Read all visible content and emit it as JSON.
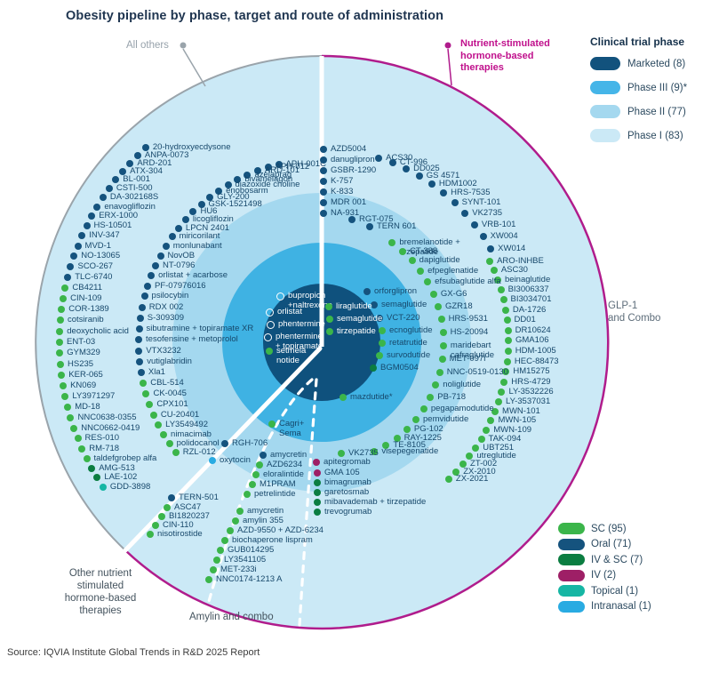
{
  "title": "Obesity pipeline by phase, target and route of administration",
  "source": "Source: IQVIA Institute Global Trends in R&D 2025  Report",
  "labels": {
    "all_others": "All others",
    "nutrient": "Nutrient-stimulated\nhormone-based\ntherapies",
    "glp1": "GLP-1\nand Combo",
    "other_nutrient": "Other nutrient\nstimulated\nhormone-based\ntherapies",
    "amylin": "Amylin and combo"
  },
  "phase_legend": {
    "title": "Clinical trial phase",
    "items": [
      {
        "label": "Marketed (8)",
        "color": "#12527d"
      },
      {
        "label": "Phase III (9)*",
        "color": "#45b5e8"
      },
      {
        "label": "Phase II (77)",
        "color": "#a4d8ef"
      },
      {
        "label": "Phase I (83)",
        "color": "#cbe9f6"
      }
    ]
  },
  "route_legend": {
    "items": [
      {
        "label": "SC (95)",
        "color": "#3bb54a"
      },
      {
        "label": "Oral (71)",
        "color": "#15537e"
      },
      {
        "label": "IV & SC (7)",
        "color": "#0b7d41"
      },
      {
        "label": "IV (2)",
        "color": "#9e1f66"
      },
      {
        "label": "Topical (1)",
        "color": "#16b6a4"
      },
      {
        "label": "Intranasal (1)",
        "color": "#29abe2"
      }
    ]
  },
  "colors": {
    "rings": {
      "phase1": "#cbe9f6",
      "phase2": "#a4d8ef",
      "phase3": "#3fb2e3",
      "marketed": "#0f517d"
    },
    "routes": {
      "sc": "#3bb54a",
      "oral": "#15537e",
      "iv_sc": "#0b7d41",
      "iv": "#9e1f66",
      "topical": "#16b6a4",
      "intranasal": "#29abe2",
      "oral_mkt": "transparent"
    },
    "edge_gray": "#9aa4ab",
    "edge_magenta": "#b01c8c"
  },
  "chart_data": {
    "type": "radial-pipeline",
    "center": [
      362,
      385
    ],
    "ring_radii": {
      "phase1": 322,
      "phase2": 168,
      "phase3": 112,
      "marketed": 66
    },
    "arc_groups": [
      {
        "name": "all-others-phase1",
        "r": 295,
        "a0": -42.2,
        "step": -2.39,
        "items": [
          [
            "20-hydroxyecdysone",
            "oral"
          ],
          [
            "ANPA-0073",
            "oral"
          ],
          [
            "ARD-201",
            "oral"
          ],
          [
            "ATX-304",
            "oral"
          ],
          [
            "BL-001",
            "oral"
          ],
          [
            "CSTI-500",
            "oral"
          ],
          [
            "DA-302168S",
            "oral"
          ],
          [
            "enavogliflozin",
            "oral"
          ],
          [
            "ERX-1000",
            "oral"
          ],
          [
            "HS-10501",
            "oral"
          ],
          [
            "INV-347",
            "oral"
          ],
          [
            "MVD-1",
            "oral"
          ],
          [
            "NO-13065",
            "oral"
          ],
          [
            "SCO-267",
            "oral"
          ],
          [
            "TLC-6740",
            "oral"
          ],
          [
            "CB4211",
            "sc"
          ],
          [
            "CIN-109",
            "sc"
          ],
          [
            "COR-1389",
            "sc"
          ],
          [
            "cotsiranib",
            "sc"
          ],
          [
            "deoxycholic acid",
            "sc"
          ],
          [
            "ENT-03",
            "sc"
          ],
          [
            "GYM329",
            "sc"
          ],
          [
            "HS235",
            "sc"
          ],
          [
            "KER-065",
            "sc"
          ],
          [
            "KN069",
            "sc"
          ],
          [
            "LY3971297",
            "sc"
          ],
          [
            "MD-18",
            "sc"
          ],
          [
            "NNC0638-0355",
            "sc"
          ],
          [
            "NNC0662-0419",
            "sc"
          ],
          [
            "RES-010",
            "sc"
          ],
          [
            "RM-718",
            "sc"
          ],
          [
            "taldefgrobep alfa",
            "sc"
          ],
          [
            "AMG-513",
            "iv_sc"
          ],
          [
            "LAE-102",
            "iv_sc"
          ],
          [
            "GDD-3898",
            "topical"
          ]
        ]
      },
      {
        "name": "all-others-phase2",
        "r": 206,
        "a0": -13.6,
        "step": -3.44,
        "items": [
          [
            "APH-001C",
            "oral"
          ],
          [
            "APH-012",
            "oral"
          ],
          [
            "ARD-101",
            "oral"
          ],
          [
            "azelaprag",
            "oral"
          ],
          [
            "bivamelagon",
            "oral"
          ],
          [
            "diazoxide choline",
            "oral"
          ],
          [
            "enobosarm",
            "oral"
          ],
          [
            "GLY-200",
            "oral"
          ],
          [
            "GSK-1521498",
            "oral"
          ],
          [
            "HU6",
            "oral"
          ],
          [
            "licogliflozin",
            "oral"
          ],
          [
            "LPCN 2401",
            "oral"
          ],
          [
            "miricorilant",
            "oral"
          ],
          [
            "monlunabant",
            "oral"
          ],
          [
            "NovOB",
            "oral"
          ],
          [
            "NT-0796",
            "oral"
          ],
          [
            "orlistat + acarbose",
            "oral"
          ],
          [
            "PF-07976016",
            "oral"
          ],
          [
            "psilocybin",
            "oral"
          ],
          [
            "RDX 002",
            "oral"
          ],
          [
            "S-309309",
            "oral"
          ],
          [
            "sibutramine + topiramate XR",
            "oral"
          ],
          [
            "tesofensine + metoprolol",
            "oral"
          ],
          [
            "VTX3232",
            "oral"
          ],
          [
            "vutiglabridin",
            "oral"
          ],
          [
            "Xla1",
            "oral"
          ],
          [
            "CBL-514",
            "sc"
          ],
          [
            "CK-0045",
            "sc"
          ],
          [
            "CPX101",
            "sc"
          ],
          [
            "CU-20401",
            "sc"
          ],
          [
            "LY3549492",
            "sc"
          ],
          [
            "nimacimab",
            "sc"
          ],
          [
            "polidocanol",
            "sc"
          ],
          [
            "RZL-012",
            "sc"
          ]
        ]
      },
      {
        "name": "glp1-phase1-oral",
        "r": 217,
        "a0": 17.2,
        "step": 4.4,
        "items": [
          [
            "ACS30",
            "oral"
          ],
          [
            "CT-996",
            "oral"
          ],
          [
            "DD025",
            "oral"
          ],
          [
            "GS 4571",
            "oral"
          ],
          [
            "HDM1002",
            "oral"
          ],
          [
            "HRS-7535",
            "oral"
          ],
          [
            "SYNT-101",
            "oral"
          ],
          [
            "VK2735",
            "oral"
          ],
          [
            "VRB-101",
            "oral"
          ],
          [
            "XW004",
            "oral"
          ],
          [
            "XW014",
            "oral"
          ]
        ]
      },
      {
        "name": "glp1-phase1-sc",
        "r": 210,
        "a0": 64.2,
        "step": 3.17,
        "items": [
          [
            "ARO-INHBE",
            "sc"
          ],
          [
            "ASC30",
            "sc"
          ],
          [
            "beinaglutide",
            "sc"
          ],
          [
            "BI3006337",
            "sc"
          ],
          [
            "BI3034701",
            "sc"
          ],
          [
            "DA-1726",
            "sc"
          ],
          [
            "DD01",
            "sc"
          ],
          [
            "DR10624",
            "sc"
          ],
          [
            "GMA106",
            "sc"
          ],
          [
            "HDM-1005",
            "sc"
          ],
          [
            "HEC-88473",
            "sc"
          ],
          [
            "HM15275",
            "sc"
          ],
          [
            "HRS-4729",
            "sc"
          ],
          [
            "LY-3532226",
            "sc"
          ],
          [
            "LY-3537031",
            "sc"
          ],
          [
            "MWN-101",
            "sc"
          ],
          [
            "MWN-105",
            "sc"
          ],
          [
            "MWN-109",
            "sc"
          ],
          [
            "TAK-094",
            "sc"
          ],
          [
            "UBT251",
            "sc"
          ],
          [
            "utreglutide",
            "sc"
          ],
          [
            "ZT-002",
            "sc"
          ],
          [
            "ZX-2010",
            "sc"
          ],
          [
            "ZX-2021",
            "sc"
          ]
        ]
      },
      {
        "name": "glp1-phase2-sc",
        "r": 137,
        "a0": 35.4,
        "step": 6.26,
        "items": [
          [
            "bremelanotide +\ntirzepatide",
            "sc"
          ],
          [
            "CT-388",
            "sc"
          ],
          [
            "dapiglutide",
            "sc"
          ],
          [
            "efpeglenatide",
            "sc"
          ],
          [
            "efsubaglutide alfa",
            "sc"
          ],
          [
            "GX-G6",
            "sc"
          ],
          [
            "GZR18",
            "sc"
          ],
          [
            "HRS-9531",
            "sc"
          ],
          [
            "HS-20094",
            "sc"
          ],
          [
            "maridebart\ncafraglutide",
            "sc"
          ],
          [
            "MET-097i",
            "sc"
          ],
          [
            "NNC-0519-0130",
            "sc"
          ],
          [
            "noliglutide",
            "sc"
          ],
          [
            "PB-718",
            "sc"
          ],
          [
            "pegapamodutide",
            "sc"
          ],
          [
            "pemvidutide",
            "sc"
          ],
          [
            "PG-102",
            "sc"
          ],
          [
            "RAY-1225",
            "sc"
          ],
          [
            "TE-8105",
            "sc"
          ],
          [
            "visepegenatide",
            "sc"
          ]
        ]
      }
    ],
    "fixed_groups": [
      {
        "name": "glp1-phase2-oral",
        "items": [
          [
            "AZD5004",
            "oral",
            364,
            168
          ],
          [
            "danuglipron",
            "oral",
            364,
            180
          ],
          [
            "GSBR-1290",
            "oral",
            364,
            192
          ],
          [
            "K-757",
            "oral",
            364,
            204
          ],
          [
            "K-833",
            "oral",
            364,
            216
          ],
          [
            "MDR 001",
            "oral",
            364,
            228
          ],
          [
            "NA-931",
            "oral",
            364,
            240
          ],
          [
            "RGT-075",
            "oral",
            396,
            247
          ],
          [
            "TERN 601",
            "oral",
            416,
            255
          ]
        ]
      },
      {
        "name": "phase3-ring",
        "items": [
          [
            "orforglipron",
            "oral",
            413,
            328
          ],
          [
            "semaglutide",
            "oral",
            421,
            343
          ],
          [
            "VCT-220",
            "oral",
            427,
            358
          ],
          [
            "ecnoglutide",
            "sc",
            430,
            372
          ],
          [
            "retatrutide",
            "sc",
            430,
            386
          ],
          [
            "survodutide",
            "sc",
            427,
            400
          ],
          [
            "BGM0504",
            "iv_sc",
            420,
            414
          ],
          [
            "mazdutide*",
            "sc",
            386,
            447
          ],
          [
            "Cagri+\nSema",
            "sc",
            306,
            477
          ]
        ]
      },
      {
        "name": "marketed-center",
        "dark": true,
        "items": [
          [
            "bupropion\n+naltrexone",
            "oral_mkt",
            315,
            333
          ],
          [
            "orlistat",
            "oral_mkt",
            303,
            351
          ],
          [
            "phentermine",
            "oral_mkt",
            304,
            365
          ],
          [
            "phentermine\n+ topiramate",
            "oral_mkt",
            301,
            379
          ],
          [
            "setmela\nnotide",
            "sc",
            303,
            395
          ],
          [
            "liraglutide",
            "sc",
            370,
            345
          ],
          [
            "semaglutide",
            "sc",
            371,
            359
          ],
          [
            "tirzepatide",
            "sc",
            371,
            373
          ]
        ]
      },
      {
        "name": "other-nutrient-section",
        "items": [
          [
            "RGH-706",
            "oral",
            253,
            499
          ],
          [
            "oxytocin",
            "intranasal",
            239,
            518
          ],
          [
            "TERN-501",
            "oral",
            193,
            560
          ],
          [
            "ASC47",
            "sc",
            188,
            571
          ],
          [
            "BI1820237",
            "sc",
            182,
            581
          ],
          [
            "CIN-110",
            "sc",
            175,
            591
          ],
          [
            "nisotirostide",
            "sc",
            169,
            601
          ]
        ]
      },
      {
        "name": "amylin-phase2",
        "items": [
          [
            "amycretin",
            "oral",
            296,
            512
          ],
          [
            "AZD6234",
            "sc",
            292,
            523
          ],
          [
            "eloralintide",
            "sc",
            288,
            534
          ],
          [
            "M1PRAM",
            "sc",
            284,
            545
          ],
          [
            "petrelintide",
            "sc",
            278,
            556
          ]
        ]
      },
      {
        "name": "amylin-phase1",
        "items": [
          [
            "amycretin",
            "sc",
            270,
            575
          ],
          [
            "amylin 355",
            "sc",
            265,
            586
          ],
          [
            "AZD-9550 + AZD-6234",
            "sc",
            259,
            597
          ],
          [
            "biochaperone lispram",
            "sc",
            253,
            608
          ],
          [
            "GUB014295",
            "sc",
            248,
            619
          ],
          [
            "LY3541105",
            "sc",
            244,
            630
          ],
          [
            "MET-233i",
            "sc",
            240,
            641
          ],
          [
            "NNC0174-1213 A",
            "sc",
            235,
            652
          ]
        ]
      },
      {
        "name": "glp1-phase2-biologics",
        "items": [
          [
            "VK2735",
            "sc",
            384,
            510
          ],
          [
            "apitegromab",
            "iv",
            356,
            520
          ],
          [
            "GMA 105",
            "iv",
            357,
            532
          ],
          [
            "bimagrumab",
            "iv_sc",
            357,
            543
          ],
          [
            "garetosmab",
            "iv_sc",
            357,
            554
          ],
          [
            "mibavademab + tirzepatide",
            "iv_sc",
            357,
            565
          ],
          [
            "trevogrumab",
            "iv_sc",
            357,
            576
          ]
        ]
      }
    ]
  }
}
